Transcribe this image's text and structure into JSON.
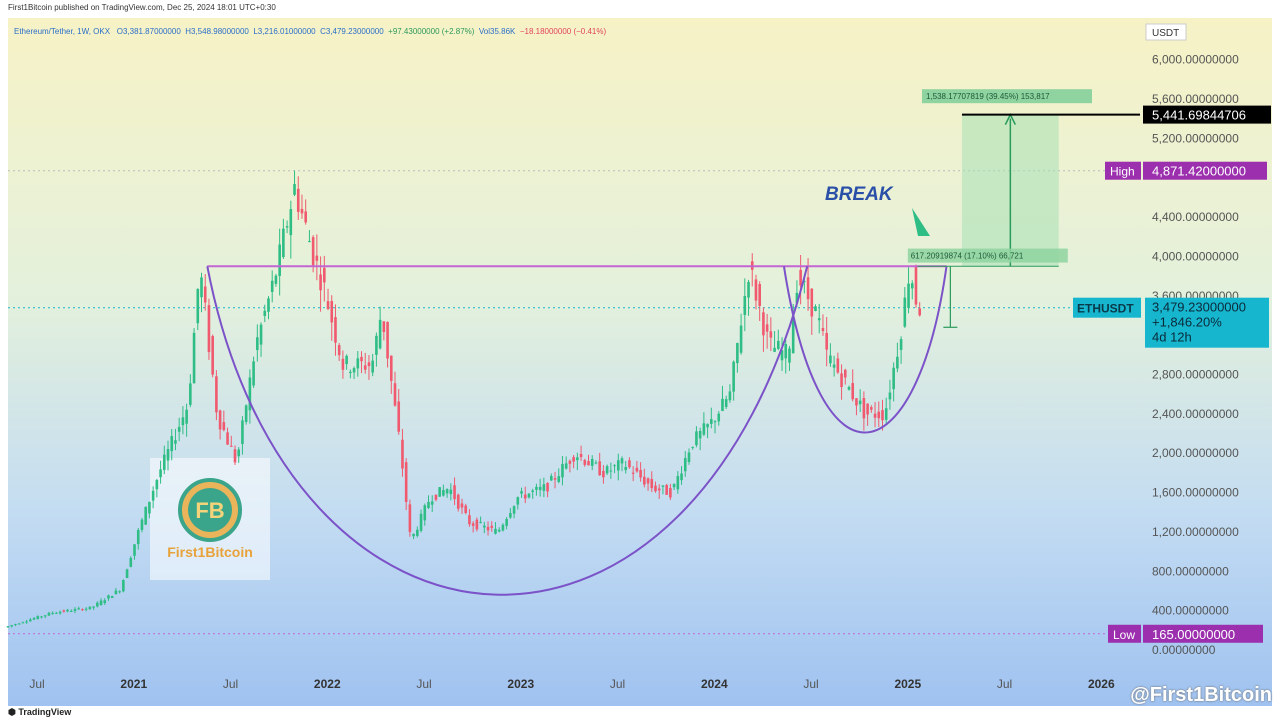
{
  "header": {
    "published": "First1Bitcoin published on TradingView.com, Dec 25, 2024 18:01 UTC+0:30",
    "symbol_line": "Ethereum/Tether, 1W, OKX",
    "open": "O3,381.87000000",
    "high": "H3,548.98000000",
    "low": "L3,216.01000000",
    "close": "C3,479.23000000",
    "change": "+97.43000000 (+2.87%)",
    "volume": "Vol35.86K",
    "volume_change": "−18.18000000 (−0.41%)",
    "currency": "USDT"
  },
  "footer": {
    "tradingview": "TradingView",
    "watermark": "@First1Bitcoin"
  },
  "logo": {
    "text": "First1Bitcoin"
  },
  "annotations": {
    "break": "BREAK",
    "target_box": "1,538.17707819 (39.45%) 153,817",
    "small_box": "617.20919874 (17.10%) 66,721"
  },
  "badges": {
    "target_price": "5,441.69844706",
    "high_label": "High",
    "high_value": "4,871.42000000",
    "symbol": "ETHUSDT",
    "last_price": "3,479.23000000",
    "last_change": "+1,846.20%",
    "countdown": "4d 12h",
    "low_label": "Low",
    "low_value": "165.00000000"
  },
  "colors": {
    "up": "#2ebd85",
    "down": "#f0596e",
    "cup": "#7b52c8",
    "resistance": "#c266d4",
    "badge_purple": "#9b2fae",
    "badge_cyan": "#17b6cf",
    "target_fill": "#a7e0b4"
  },
  "chart_data": {
    "type": "candlestick",
    "title": "Ethereum/Tether, 1W, OKX",
    "x_ticks": [
      "Jul",
      "2021",
      "Jul",
      "2022",
      "Jul",
      "2023",
      "Jul",
      "2024",
      "Jul",
      "2025",
      "Jul",
      "2026"
    ],
    "y_ticks": [
      "0.00000000",
      "400.00000000",
      "800.00000000",
      "1,200.00000000",
      "1,600.00000000",
      "2,000.00000000",
      "2,400.00000000",
      "2,800.00000000",
      "3,600.00000000",
      "4,000.00000000",
      "4,400.00000000",
      "5,200.00000000",
      "5,600.00000000",
      "6,000.00000000"
    ],
    "ylim": [
      0,
      6200
    ],
    "xlim": [
      2020.35,
      2026.2
    ],
    "key_levels": {
      "high": 4871.42,
      "low": 165.0,
      "resistance": 3900,
      "target": 5441.69844706,
      "last": 3479.23
    },
    "price_path": [
      [
        2020.35,
        230
      ],
      [
        2020.6,
        380
      ],
      [
        2020.8,
        430
      ],
      [
        2020.95,
        620
      ],
      [
        2021.05,
        1250
      ],
      [
        2021.15,
        1800
      ],
      [
        2021.3,
        2500
      ],
      [
        2021.36,
        3900
      ],
      [
        2021.45,
        2400
      ],
      [
        2021.55,
        1900
      ],
      [
        2021.65,
        3100
      ],
      [
        2021.75,
        3800
      ],
      [
        2021.85,
        4700
      ],
      [
        2021.95,
        4000
      ],
      [
        2022.0,
        3700
      ],
      [
        2022.1,
        2900
      ],
      [
        2022.25,
        2900
      ],
      [
        2022.3,
        3450
      ],
      [
        2022.4,
        2000
      ],
      [
        2022.45,
        1100
      ],
      [
        2022.55,
        1550
      ],
      [
        2022.65,
        1650
      ],
      [
        2022.75,
        1300
      ],
      [
        2022.9,
        1200
      ],
      [
        2023.0,
        1550
      ],
      [
        2023.15,
        1650
      ],
      [
        2023.3,
        2000
      ],
      [
        2023.45,
        1800
      ],
      [
        2023.55,
        1900
      ],
      [
        2023.7,
        1650
      ],
      [
        2023.8,
        1600
      ],
      [
        2023.9,
        2100
      ],
      [
        2024.0,
        2300
      ],
      [
        2024.1,
        2600
      ],
      [
        2024.2,
        3900
      ],
      [
        2024.3,
        3100
      ],
      [
        2024.4,
        3000
      ],
      [
        2024.45,
        3800
      ],
      [
        2024.55,
        3400
      ],
      [
        2024.6,
        3000
      ],
      [
        2024.7,
        2700
      ],
      [
        2024.8,
        2400
      ],
      [
        2024.9,
        2400
      ],
      [
        2024.98,
        3200
      ],
      [
        2025.03,
        3900
      ],
      [
        2025.07,
        3479
      ]
    ]
  }
}
